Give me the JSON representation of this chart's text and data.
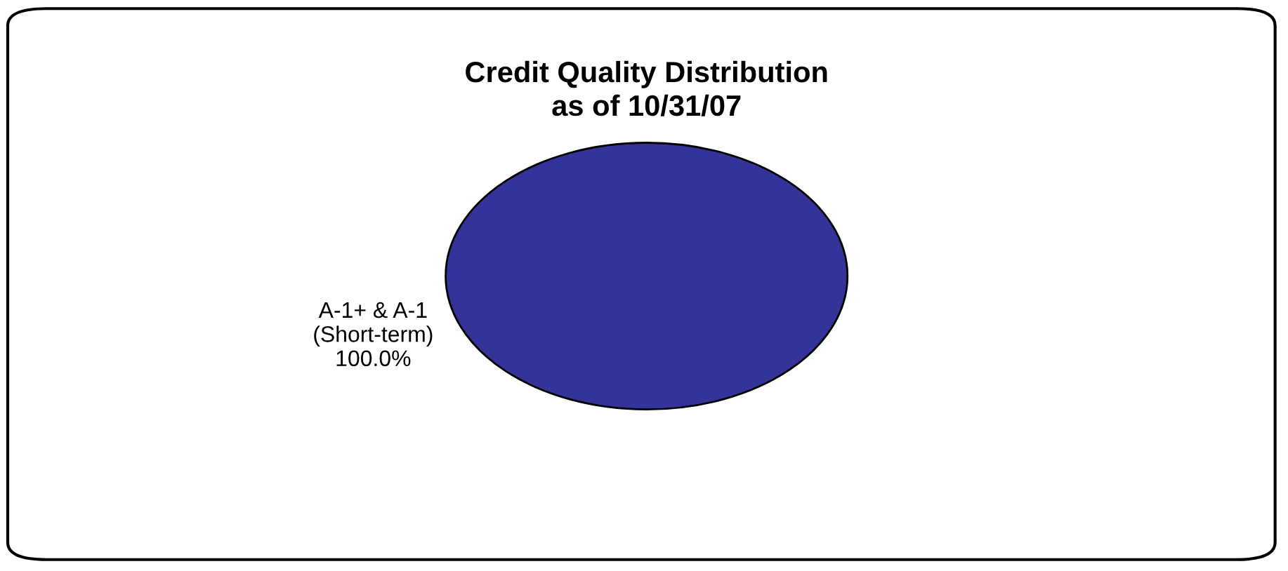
{
  "chart_data": {
    "type": "pie",
    "title": "Credit Quality Distribution\nas of 10/31/07",
    "categories": [
      "A-1+ & A-1\n(Short-term)"
    ],
    "values": [
      100
    ],
    "colors": [
      "#333399"
    ],
    "value_labels": [
      "100.0%"
    ]
  }
}
